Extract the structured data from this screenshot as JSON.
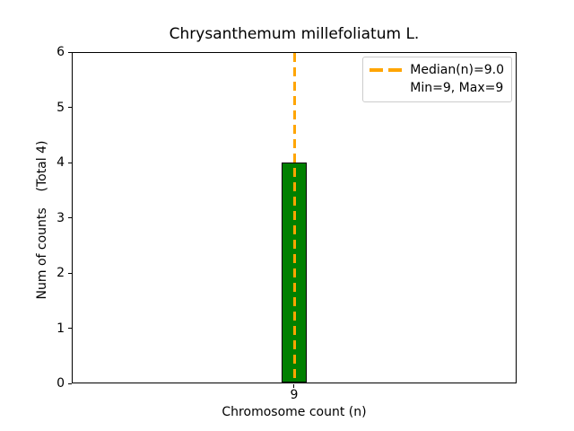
{
  "chart_data": {
    "type": "bar",
    "title": "Chrysanthemum millefoliatum L.",
    "xlabel": "Chromosome count (n)",
    "ylabel": "Num of counts    (Total 4)",
    "categories": [
      "9"
    ],
    "values": [
      4
    ],
    "total_counts": 4,
    "ylim": [
      0,
      6
    ],
    "yticks": [
      "0",
      "1",
      "2",
      "3",
      "4",
      "5",
      "6"
    ],
    "grid": false,
    "bar_color": "#008000",
    "bar_edge_color": "#000000",
    "median_line": {
      "x": 9.0,
      "style": "dashed",
      "color": "#FFA500"
    },
    "legend": {
      "position": "upper right",
      "entries": [
        {
          "marker": "dashed-line",
          "marker_color": "#FFA500",
          "label": "Median(n)=9.0"
        },
        {
          "marker": "none",
          "label": "Min=9, Max=9"
        }
      ]
    },
    "stats": {
      "median": 9.0,
      "min": 9,
      "max": 9
    }
  }
}
